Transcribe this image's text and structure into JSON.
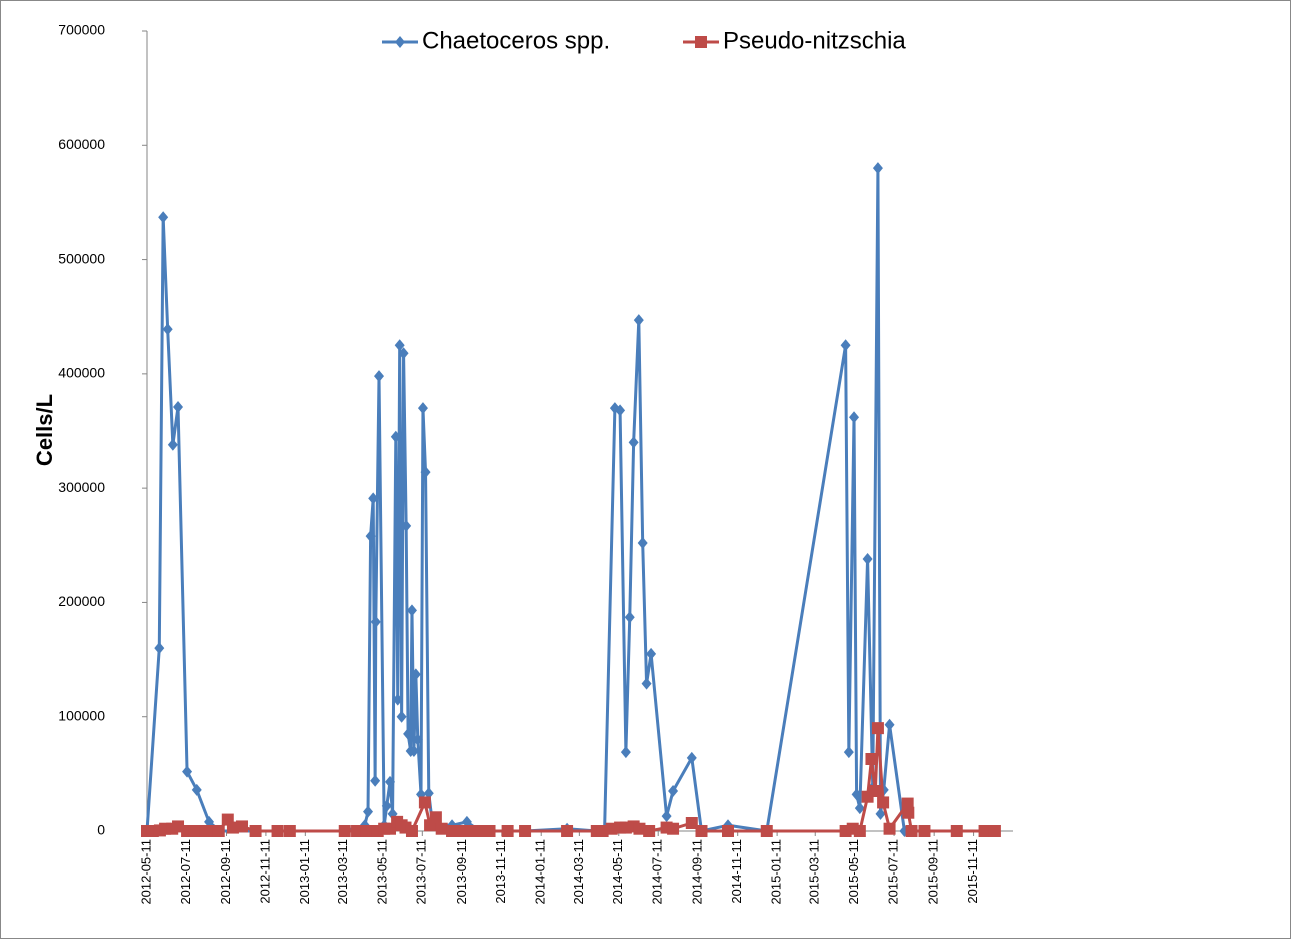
{
  "chart_data": {
    "type": "line",
    "y_label": "Cells/L",
    "xlim": [
      "2012-05-11",
      "2016-01-11"
    ],
    "xticks": [
      "2012-05-11",
      "2012-07-11",
      "2012-09-11",
      "2012-11-11",
      "2013-01-11",
      "2013-03-11",
      "2013-05-11",
      "2013-07-11",
      "2013-09-11",
      "2013-11-11",
      "2014-01-11",
      "2014-03-11",
      "2014-05-11",
      "2014-07-11",
      "2014-09-11",
      "2014-11-11",
      "2015-01-11",
      "2015-03-11",
      "2015-05-11",
      "2015-07-11",
      "2015-09-11",
      "2015-11-11"
    ],
    "ylim": [
      0,
      700000
    ],
    "yticks": [
      0,
      100000,
      200000,
      300000,
      400000,
      500000,
      600000,
      700000
    ],
    "legend": "top",
    "series": [
      {
        "name": "Chaetoceros spp.",
        "color": "#4a7ebb",
        "marker": "diamond",
        "x": [
          "2012-05-11",
          "2012-05-30",
          "2012-06-05",
          "2012-06-12",
          "2012-06-20",
          "2012-06-28",
          "2012-07-12",
          "2012-07-27",
          "2012-08-15",
          "2012-09-01",
          "2012-12-18",
          "2013-03-13",
          "2013-04-13",
          "2013-04-18",
          "2013-04-22",
          "2013-04-26",
          "2013-04-29",
          "2013-04-30",
          "2013-05-05",
          "2013-05-13",
          "2013-05-17",
          "2013-05-22",
          "2013-05-26",
          "2013-05-31",
          "2013-06-03",
          "2013-06-06",
          "2013-06-09",
          "2013-06-12",
          "2013-06-16",
          "2013-06-19",
          "2013-06-23",
          "2013-06-25",
          "2013-06-28",
          "2013-07-01",
          "2013-07-04",
          "2013-07-09",
          "2013-07-12",
          "2013-07-16",
          "2013-07-21",
          "2013-07-27",
          "2013-08-26",
          "2013-09-18",
          "2013-10-08",
          "2013-12-17",
          "2014-02-20",
          "2014-04-07",
          "2014-04-19",
          "2014-05-05",
          "2014-05-13",
          "2014-05-22",
          "2014-05-28",
          "2014-06-03",
          "2014-06-11",
          "2014-06-17",
          "2014-06-23",
          "2014-06-30",
          "2014-07-24",
          "2014-08-03",
          "2014-09-01",
          "2014-09-16",
          "2014-10-27",
          "2014-12-26",
          "2015-04-27",
          "2015-05-02",
          "2015-05-10",
          "2015-05-14",
          "2015-05-19",
          "2015-05-31",
          "2015-06-08",
          "2015-06-16",
          "2015-06-20",
          "2015-06-25",
          "2015-07-04",
          "2015-07-27",
          "2015-08-07",
          "2015-08-27",
          "2015-10-16",
          "2015-11-28",
          "2015-12-14"
        ],
        "values": [
          0,
          160000,
          537000,
          439000,
          338000,
          371000,
          52000,
          36000,
          8000,
          0,
          0,
          0,
          5000,
          17000,
          258000,
          291000,
          44000,
          183000,
          398000,
          5000,
          22000,
          43000,
          15000,
          345000,
          115000,
          425000,
          100000,
          418000,
          267000,
          85000,
          70000,
          193000,
          70000,
          137000,
          80000,
          32000,
          370000,
          314000,
          33000,
          5000,
          5000,
          8000,
          0,
          0,
          2000,
          0,
          0,
          370000,
          368000,
          69000,
          187000,
          340000,
          447000,
          252000,
          129000,
          155000,
          13000,
          35000,
          64000,
          0,
          5000,
          0,
          425000,
          69000,
          362000,
          32000,
          20000,
          238000,
          38000,
          580000,
          15000,
          36000,
          93000,
          0,
          0,
          0,
          0,
          0,
          0
        ]
      },
      {
        "name": "Pseudo-nitzschia",
        "color": "#be4b48",
        "marker": "square",
        "x": [
          "2012-05-11",
          "2012-05-20",
          "2012-05-31",
          "2012-06-08",
          "2012-06-19",
          "2012-06-28",
          "2012-07-12",
          "2012-07-24",
          "2012-08-09",
          "2012-08-20",
          "2012-08-30",
          "2012-09-13",
          "2012-09-21",
          "2012-10-05",
          "2012-10-26",
          "2012-11-29",
          "2012-12-18",
          "2013-03-13",
          "2013-04-01",
          "2013-04-16",
          "2013-05-03",
          "2013-05-13",
          "2013-05-22",
          "2013-06-02",
          "2013-06-09",
          "2013-06-15",
          "2013-06-25",
          "2013-07-15",
          "2013-07-23",
          "2013-08-01",
          "2013-08-10",
          "2013-08-26",
          "2013-09-07",
          "2013-09-23",
          "2013-10-08",
          "2013-10-23",
          "2013-11-20",
          "2013-12-17",
          "2014-02-20",
          "2014-04-07",
          "2014-04-16",
          "2014-04-30",
          "2014-05-13",
          "2014-05-22",
          "2014-06-03",
          "2014-06-12",
          "2014-06-27",
          "2014-07-24",
          "2014-08-03",
          "2014-09-01",
          "2014-09-16",
          "2014-10-27",
          "2014-12-26",
          "2015-04-27",
          "2015-05-08",
          "2015-05-19",
          "2015-05-31",
          "2015-06-06",
          "2015-06-12",
          "2015-06-16",
          "2015-06-24",
          "2015-07-04",
          "2015-08-01",
          "2015-08-02",
          "2015-08-07",
          "2015-08-27",
          "2015-10-16",
          "2015-11-28",
          "2015-12-14"
        ],
        "values": [
          0,
          0,
          500,
          2000,
          2000,
          4000,
          0,
          0,
          0,
          0,
          0,
          10000,
          3000,
          4000,
          0,
          0,
          0,
          0,
          0,
          0,
          0,
          2000,
          2000,
          8000,
          5000,
          3000,
          0,
          25000,
          5000,
          12000,
          2000,
          0,
          0,
          0,
          0,
          0,
          0,
          0,
          0,
          0,
          0,
          2000,
          3000,
          3000,
          4000,
          2000,
          0,
          3000,
          2000,
          7000,
          0,
          0,
          0,
          0,
          2000,
          0,
          30000,
          63000,
          35000,
          90000,
          25000,
          2000,
          24000,
          16000,
          0,
          0,
          0,
          0,
          0
        ]
      }
    ]
  }
}
